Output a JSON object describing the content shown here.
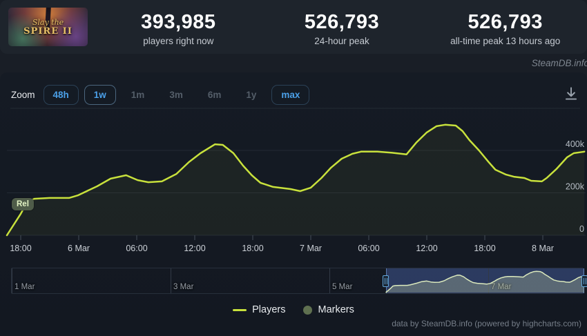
{
  "header": {
    "game_title_line1": "Slay the",
    "game_title_line2": "SPIRE II",
    "stats": [
      {
        "value": "393,985",
        "label": "players right now"
      },
      {
        "value": "526,793",
        "label": "24-hour peak"
      },
      {
        "value": "526,793",
        "label": "all-time peak 13 hours ago"
      }
    ]
  },
  "watermark": "SteamDB.info",
  "toolbar": {
    "zoom_label": "Zoom",
    "buttons": [
      {
        "label": "48h",
        "state": "enabled"
      },
      {
        "label": "1w",
        "state": "selected"
      },
      {
        "label": "1m",
        "state": "disabled"
      },
      {
        "label": "3m",
        "state": "disabled"
      },
      {
        "label": "6m",
        "state": "disabled"
      },
      {
        "label": "1y",
        "state": "disabled"
      },
      {
        "label": "max",
        "state": "enabled"
      }
    ]
  },
  "chart_data": {
    "type": "line",
    "series": [
      {
        "name": "Players",
        "color": "#c8e13c",
        "x_unit": "hours since 5 Mar 16:00",
        "points": [
          [
            0.57,
            0
          ],
          [
            2.0,
            101000
          ],
          [
            2.7,
            159000
          ],
          [
            3.4,
            172000
          ],
          [
            5.0,
            176000
          ],
          [
            7.0,
            176000
          ],
          [
            7.9,
            188000
          ],
          [
            9.9,
            231000
          ],
          [
            11.3,
            267000
          ],
          [
            12.9,
            283000
          ],
          [
            14.1,
            260000
          ],
          [
            15.2,
            250000
          ],
          [
            16.6,
            254000
          ],
          [
            18.1,
            289000
          ],
          [
            19.4,
            345000
          ],
          [
            20.6,
            387000
          ],
          [
            22.1,
            429000
          ],
          [
            22.9,
            426000
          ],
          [
            24.0,
            387000
          ],
          [
            25.0,
            328000
          ],
          [
            25.9,
            283000
          ],
          [
            26.8,
            247000
          ],
          [
            28.1,
            228000
          ],
          [
            29.9,
            218000
          ],
          [
            30.9,
            208000
          ],
          [
            32.0,
            224000
          ],
          [
            33.1,
            270000
          ],
          [
            34.1,
            319000
          ],
          [
            35.2,
            361000
          ],
          [
            36.3,
            384000
          ],
          [
            37.2,
            394000
          ],
          [
            38.9,
            394000
          ],
          [
            40.4,
            389000
          ],
          [
            41.9,
            381000
          ],
          [
            42.9,
            436000
          ],
          [
            44.0,
            485000
          ],
          [
            45.0,
            514000
          ],
          [
            45.9,
            521000
          ],
          [
            47.0,
            517000
          ],
          [
            47.7,
            491000
          ],
          [
            48.4,
            449000
          ],
          [
            49.4,
            400000
          ],
          [
            50.4,
            345000
          ],
          [
            51.1,
            309000
          ],
          [
            52.2,
            286000
          ],
          [
            53.0,
            276000
          ],
          [
            54.1,
            270000
          ],
          [
            54.8,
            257000
          ],
          [
            55.9,
            254000
          ],
          [
            56.4,
            270000
          ],
          [
            57.4,
            312000
          ],
          [
            58.5,
            367000
          ],
          [
            59.2,
            387000
          ],
          [
            60.3,
            394000
          ]
        ]
      },
      {
        "name": "Markers",
        "color": "#5f7050",
        "points": []
      }
    ],
    "release_flag": {
      "label": "Rel",
      "hour": 1.6
    },
    "x_ticks": [
      {
        "hour": 2,
        "label": "18:00"
      },
      {
        "hour": 8,
        "label": "6 Mar"
      },
      {
        "hour": 14,
        "label": "06:00"
      },
      {
        "hour": 20,
        "label": "12:00"
      },
      {
        "hour": 26,
        "label": "18:00"
      },
      {
        "hour": 32,
        "label": "7 Mar"
      },
      {
        "hour": 38,
        "label": "06:00"
      },
      {
        "hour": 44,
        "label": "12:00"
      },
      {
        "hour": 50,
        "label": "18:00"
      },
      {
        "hour": 56,
        "label": "8 Mar"
      }
    ],
    "y_ticks": [
      {
        "value": 0,
        "label": "0"
      },
      {
        "value": 200000,
        "label": "200k"
      },
      {
        "value": 400000,
        "label": "400k"
      }
    ],
    "ylim": [
      0,
      600000
    ],
    "grid": true,
    "legend_position": "bottom-center",
    "navigator": {
      "labels": [
        {
          "day": 0,
          "label": "1 Mar"
        },
        {
          "day": 2,
          "label": "3 Mar"
        },
        {
          "day": 4,
          "label": "5 Mar"
        },
        {
          "day": 6,
          "label": "7 Mar"
        }
      ],
      "selection_start_day": 4.71,
      "selection_end_day": 7.21
    }
  },
  "legend": [
    {
      "label": "Players",
      "symbol": "line",
      "color": "#c8e13c"
    },
    {
      "label": "Markers",
      "symbol": "circle",
      "color": "#5f7050"
    }
  ],
  "credits": "data by SteamDB.info (powered by highcharts.com)"
}
